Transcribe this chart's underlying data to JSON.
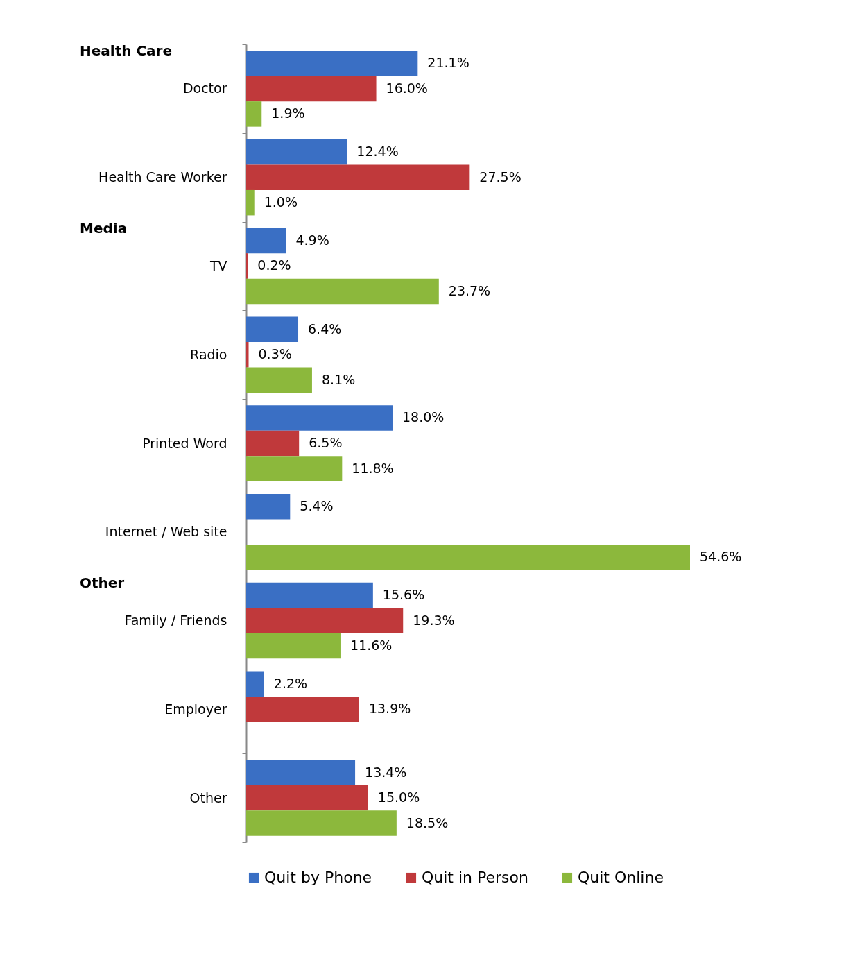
{
  "chart_data": {
    "type": "bar",
    "orientation": "horizontal",
    "categories": [
      "Doctor",
      "Health Care Worker",
      "TV",
      "Radio",
      "Printed Word",
      "Internet / Web site",
      "Family / Friends",
      "Employer",
      "Other"
    ],
    "series": [
      {
        "name": "Quit by Phone",
        "color": "#3a6fc4",
        "values": [
          21.1,
          12.4,
          4.9,
          6.4,
          18.0,
          5.4,
          15.6,
          2.2,
          13.4
        ],
        "value_labels": [
          "21.1%",
          "12.4%",
          "4.9%",
          "6.4%",
          "18.0%",
          "5.4%",
          "15.6%",
          "2.2%",
          "13.4%"
        ]
      },
      {
        "name": "Quit in Person",
        "color": "#c0393b",
        "values": [
          16.0,
          27.5,
          0.2,
          0.3,
          6.5,
          null,
          19.3,
          13.9,
          15.0
        ],
        "value_labels": [
          "16.0%",
          "27.5%",
          "0.2%",
          "0.3%",
          "6.5%",
          null,
          "19.3%",
          "13.9%",
          "15.0%"
        ]
      },
      {
        "name": "Quit Online",
        "color": "#8cb83c",
        "values": [
          1.9,
          1.0,
          23.7,
          8.1,
          11.8,
          54.6,
          11.6,
          null,
          18.5
        ],
        "value_labels": [
          "1.9%",
          "1.0%",
          "23.7%",
          "8.1%",
          "11.8%",
          "54.6%",
          "11.6%",
          null,
          "18.5%"
        ]
      }
    ],
    "annotations": [
      "Health Care",
      "Media",
      "Other"
    ],
    "legend": "bottom"
  }
}
